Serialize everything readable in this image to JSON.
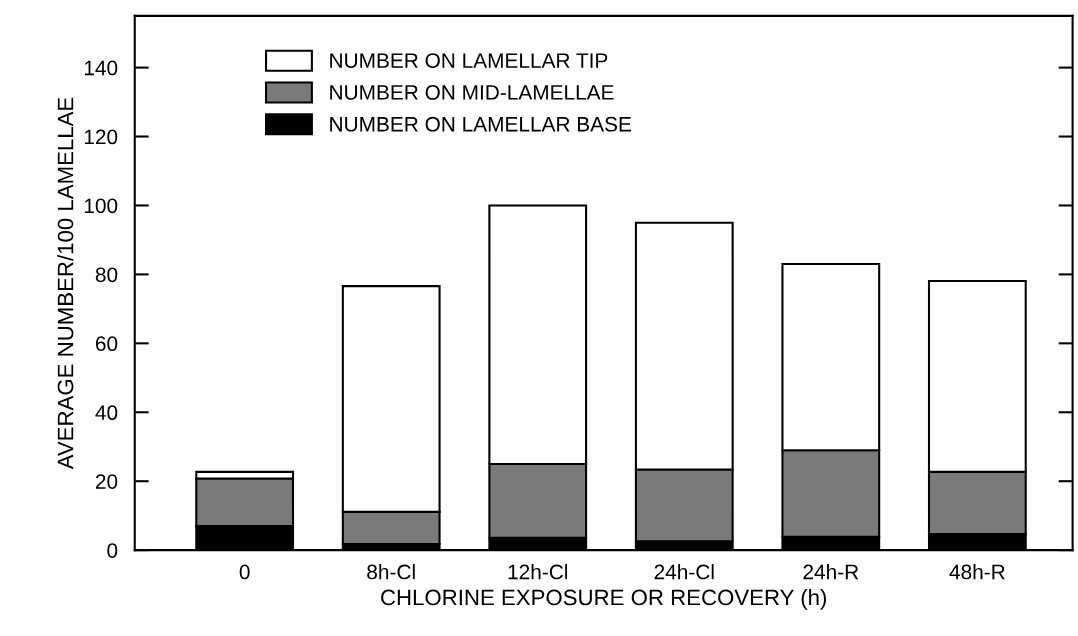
{
  "chart_data": {
    "type": "bar",
    "stacked": true,
    "categories": [
      "0",
      "8h-Cl",
      "12h-Cl",
      "24h-Cl",
      "24h-R",
      "48h-R"
    ],
    "series": [
      {
        "name": "NUMBER ON LAMELLAR BASE",
        "color": "#000000",
        "values": [
          7,
          1.8,
          3.6,
          2.6,
          3.9,
          4.7
        ]
      },
      {
        "name": "NUMBER ON MID-LAMELLAE",
        "color": "#7a7a7a",
        "values": [
          13.8,
          9.3,
          21.4,
          20.8,
          25.1,
          18
        ]
      },
      {
        "name": "NUMBER ON LAMELLAR TIP",
        "color": "#ffffff",
        "values": [
          1.9,
          65.5,
          75,
          71.6,
          54,
          55.4
        ]
      }
    ],
    "xlabel": "CHLORINE EXPOSURE OR RECOVERY (h)",
    "ylabel": "AVERAGE NUMBER/100 LAMELLAE",
    "ylim": [
      0,
      155
    ],
    "yticks": [
      0,
      20,
      40,
      60,
      80,
      100,
      120,
      140
    ],
    "grid": false,
    "legend": "top left"
  }
}
